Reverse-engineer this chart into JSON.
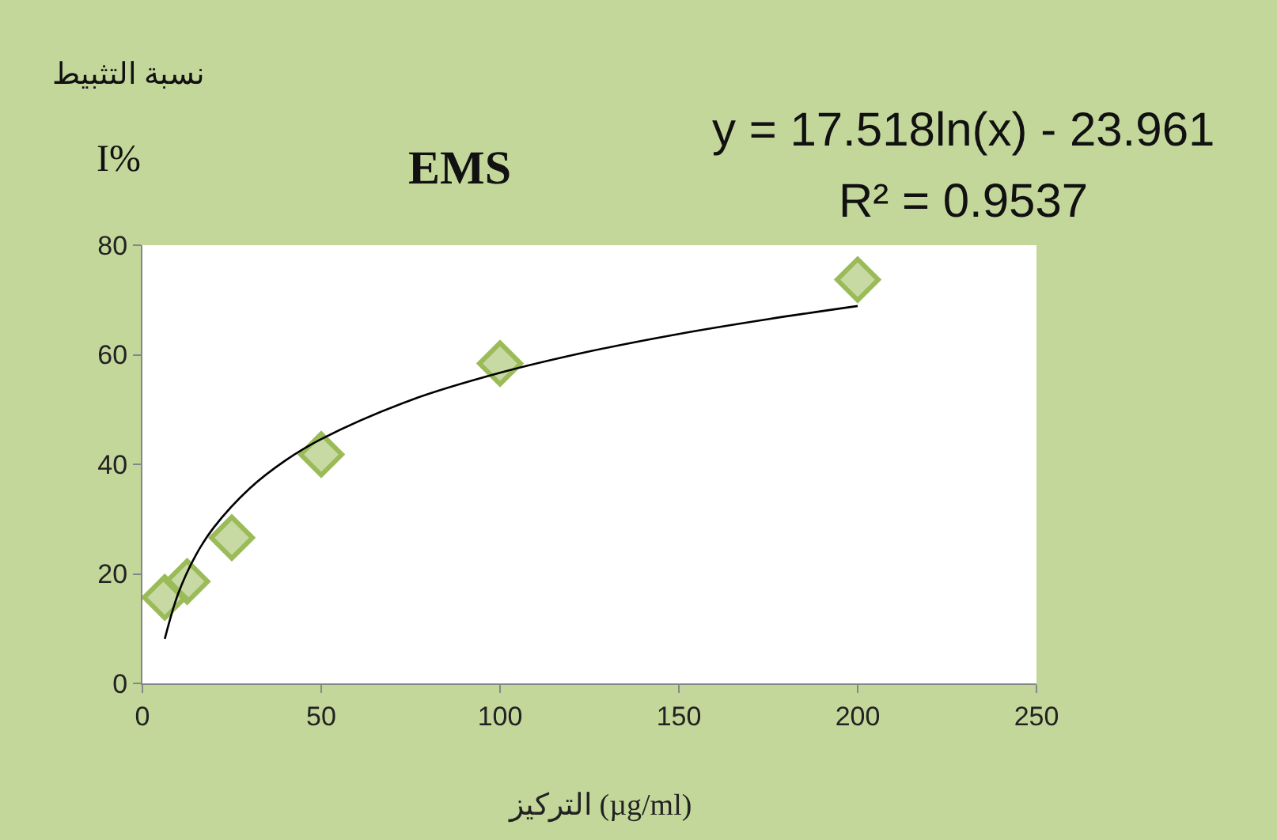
{
  "chart_data": {
    "type": "scatter",
    "title": "EMS",
    "xlabel": "التركيز (µg/ml)",
    "annotations": [
      "نسبة التثبيط",
      "I%",
      "y = 17.518ln(x) - 23.961",
      "R² = 0.9537"
    ],
    "xlim": [
      0,
      250
    ],
    "xticks": [
      0,
      50,
      100,
      150,
      200,
      250
    ],
    "ylim": [
      0,
      80
    ],
    "yticks": [
      0,
      20,
      40,
      60,
      80
    ],
    "marker": "diamond",
    "series": [
      {
        "type": "scatter",
        "color": "#9bbb59",
        "x": [
          6.25,
          12.5,
          25,
          50,
          100,
          200
        ],
        "values": [
          15.7,
          18.6,
          26.6,
          41.8,
          58.4,
          73.7
        ]
      },
      {
        "type": "line",
        "color": "#000000",
        "marker": "none",
        "line_style": "solid",
        "x": [
          6.25,
          10,
          15,
          20,
          30,
          40,
          50,
          75,
          100,
          125,
          150,
          175,
          200
        ],
        "values": [
          8.1,
          16.4,
          23.5,
          28.5,
          35.6,
          40.7,
          44.6,
          51.7,
          56.7,
          60.6,
          63.8,
          66.5,
          68.9
        ]
      }
    ]
  }
}
